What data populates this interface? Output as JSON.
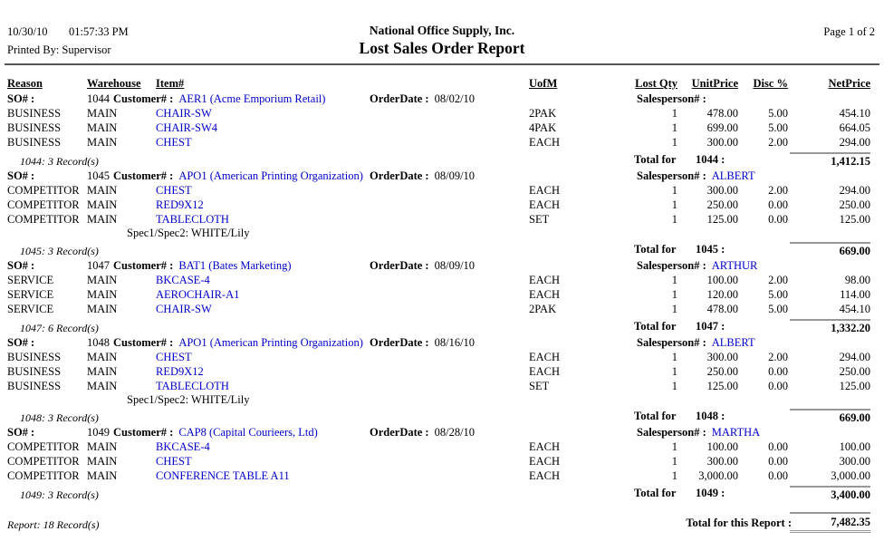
{
  "page": {
    "date": "10/30/10",
    "time": "01:57:33 PM",
    "printed_by": "Printed By: Supervisor",
    "company": "National Office Supply, Inc.",
    "report_title": "Lost Sales Order Report",
    "page_info": "Page 1 of 2"
  },
  "labels": {
    "so": "SO# :",
    "customer": "Customer# :",
    "order_date": "OrderDate :",
    "salesperson": "Salesperson# :",
    "total_for": "Total for",
    "report_total": "Total for this Report :"
  },
  "columns": {
    "reason": "Reason",
    "warehouse": "Warehouse",
    "item": "Item#",
    "uofm": "UofM",
    "lost_qty": "Lost Qty",
    "unit_price": "UnitPrice",
    "disc": "Disc %",
    "net_price": "NetPrice"
  },
  "groups": [
    {
      "so_number": "1044",
      "customer": "AER1 (Acme Emporium Retail)",
      "order_date": "08/02/10",
      "salesperson": "",
      "rows": [
        {
          "reason": "BUSINESS",
          "warehouse": "MAIN",
          "item": "CHAIR-SW",
          "uofm": "2PAK",
          "lost_qty": "1",
          "unit_price": "478.00",
          "disc": "5.00",
          "net_price": "454.10"
        },
        {
          "reason": "BUSINESS",
          "warehouse": "MAIN",
          "item": "CHAIR-SW4",
          "uofm": "4PAK",
          "lost_qty": "1",
          "unit_price": "699.00",
          "disc": "5.00",
          "net_price": "664.05"
        },
        {
          "reason": "BUSINESS",
          "warehouse": "MAIN",
          "item": "CHEST",
          "uofm": "EACH",
          "lost_qty": "1",
          "unit_price": "300.00",
          "disc": "2.00",
          "net_price": "294.00"
        }
      ],
      "record_note": "1044: 3 Record(s)",
      "total_label": "1044 :",
      "total": "1,412.15"
    },
    {
      "so_number": "1045",
      "customer": "APO1 (American Printing Organization)",
      "order_date": "08/09/10",
      "salesperson": "ALBERT",
      "rows": [
        {
          "reason": "COMPETITOR",
          "warehouse": "MAIN",
          "item": "CHEST",
          "uofm": "EACH",
          "lost_qty": "1",
          "unit_price": "300.00",
          "disc": "2.00",
          "net_price": "294.00"
        },
        {
          "reason": "COMPETITOR",
          "warehouse": "MAIN",
          "item": "RED9X12",
          "uofm": "EACH",
          "lost_qty": "1",
          "unit_price": "250.00",
          "disc": "0.00",
          "net_price": "250.00"
        },
        {
          "reason": "COMPETITOR",
          "warehouse": "MAIN",
          "item": "TABLECLOTH",
          "uofm": "SET",
          "lost_qty": "1",
          "unit_price": "125.00",
          "disc": "0.00",
          "net_price": "125.00",
          "spec": "Spec1/Spec2: WHITE/Lily"
        }
      ],
      "record_note": "1045: 3 Record(s)",
      "total_label": "1045 :",
      "total": "669.00"
    },
    {
      "so_number": "1047",
      "customer": "BAT1 (Bates Marketing)",
      "order_date": "08/09/10",
      "salesperson": "ARTHUR",
      "rows": [
        {
          "reason": "SERVICE",
          "warehouse": "MAIN",
          "item": "BKCASE-4",
          "uofm": "EACH",
          "lost_qty": "1",
          "unit_price": "100.00",
          "disc": "2.00",
          "net_price": "98.00"
        },
        {
          "reason": "SERVICE",
          "warehouse": "MAIN",
          "item": "AEROCHAIR-A1",
          "uofm": "EACH",
          "lost_qty": "1",
          "unit_price": "120.00",
          "disc": "5.00",
          "net_price": "114.00"
        },
        {
          "reason": "SERVICE",
          "warehouse": "MAIN",
          "item": "CHAIR-SW",
          "uofm": "2PAK",
          "lost_qty": "1",
          "unit_price": "478.00",
          "disc": "5.00",
          "net_price": "454.10"
        }
      ],
      "record_note": "1047: 6 Record(s)",
      "total_label": "1047 :",
      "total": "1,332.20"
    },
    {
      "so_number": "1048",
      "customer": "APO1 (American Printing Organization)",
      "order_date": "08/16/10",
      "salesperson": "ALBERT",
      "rows": [
        {
          "reason": "BUSINESS",
          "warehouse": "MAIN",
          "item": "CHEST",
          "uofm": "EACH",
          "lost_qty": "1",
          "unit_price": "300.00",
          "disc": "2.00",
          "net_price": "294.00"
        },
        {
          "reason": "BUSINESS",
          "warehouse": "MAIN",
          "item": "RED9X12",
          "uofm": "EACH",
          "lost_qty": "1",
          "unit_price": "250.00",
          "disc": "0.00",
          "net_price": "250.00"
        },
        {
          "reason": "BUSINESS",
          "warehouse": "MAIN",
          "item": "TABLECLOTH",
          "uofm": "SET",
          "lost_qty": "1",
          "unit_price": "125.00",
          "disc": "0.00",
          "net_price": "125.00",
          "spec": "Spec1/Spec2: WHITE/Lily"
        }
      ],
      "record_note": "1048: 3 Record(s)",
      "total_label": "1048 :",
      "total": "669.00"
    },
    {
      "so_number": "1049",
      "customer": "CAP8 (Capital Courieers, Ltd)",
      "order_date": "08/28/10",
      "salesperson": "MARTHA",
      "rows": [
        {
          "reason": "COMPETITOR",
          "warehouse": "MAIN",
          "item": "BKCASE-4",
          "uofm": "EACH",
          "lost_qty": "1",
          "unit_price": "100.00",
          "disc": "0.00",
          "net_price": "100.00"
        },
        {
          "reason": "COMPETITOR",
          "warehouse": "MAIN",
          "item": "CHEST",
          "uofm": "EACH",
          "lost_qty": "1",
          "unit_price": "300.00",
          "disc": "0.00",
          "net_price": "300.00"
        },
        {
          "reason": "COMPETITOR",
          "warehouse": "MAIN",
          "item": "CONFERENCE TABLE A11",
          "uofm": "EACH",
          "lost_qty": "1",
          "unit_price": "3,000.00",
          "disc": "0.00",
          "net_price": "3,000.00"
        }
      ],
      "record_note": "1049: 3 Record(s)",
      "total_label": "1049 :",
      "total": "3,400.00"
    }
  ],
  "report_footer": {
    "records": "Report: 18 Record(s)",
    "total": "7,482.35"
  },
  "colors": {
    "link_blue": "#0000cc",
    "total_line_gray": "#999999"
  }
}
